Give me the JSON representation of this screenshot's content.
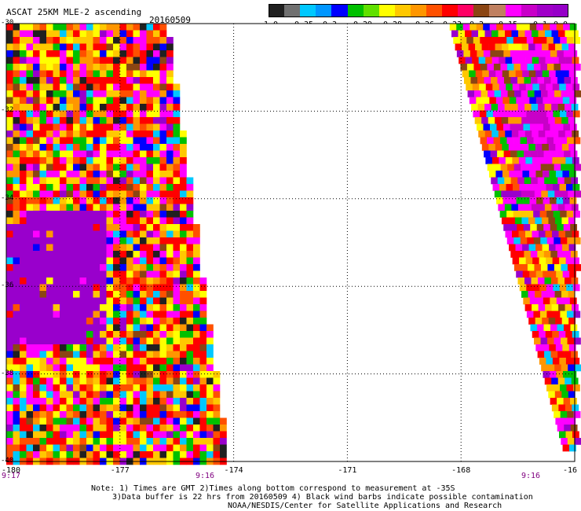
{
  "header": {
    "title": "ASCAT 25KM MLE-2 ascending",
    "date": "20160509"
  },
  "colorbar": {
    "labels": [
      "-1.0",
      "-0.35",
      "-0.3",
      "-0.29",
      "-0.28",
      "-0.26",
      "-0.23",
      "-0.2",
      "-0.15",
      "-0.1",
      "0.0"
    ],
    "colors": [
      "#202020",
      "#707070",
      "#00c8ff",
      "#0096ff",
      "#0000ff",
      "#00c000",
      "#60e000",
      "#ffff00",
      "#ffc800",
      "#ff9600",
      "#ff5000",
      "#ff0000",
      "#ff0064",
      "#8b4513",
      "#c08060",
      "#ff00ff",
      "#c800c8",
      "#a000c8",
      "#9600c8"
    ]
  },
  "map": {
    "lon_labels": [
      "-180",
      "-177",
      "-174",
      "-171",
      "-168",
      "-16"
    ],
    "lat_labels": [
      "-30",
      "-32",
      "-34",
      "-36",
      "-38",
      "-40"
    ],
    "lon_range": [
      -180,
      -165
    ],
    "lat_range": [
      -40,
      -30
    ],
    "grid": true,
    "palette": [
      "#202020",
      "#00c8ff",
      "#0000ff",
      "#00c000",
      "#ffff00",
      "#ffc800",
      "#ff9600",
      "#ff5000",
      "#ff0000",
      "#ff00ff",
      "#9900cc",
      "#8b4513"
    ],
    "swaths": [
      {
        "name": "west",
        "lon_start_top": -180,
        "lon_end_top": -175.8,
        "lon_end_bottom": -174.2
      },
      {
        "name": "east",
        "lon_start_top": -168.3,
        "lon_end_top": -165,
        "lon_start_bottom": -165.2
      }
    ]
  },
  "times": {
    "left": "9:17",
    "middle": "9:16",
    "right": "9:16"
  },
  "notes": {
    "line1": "Note: 1) Times are GMT 2)Times along bottom correspond to measurement at -35S",
    "line2": "3)Data buffer is 22 hrs from 20160509 4) Black wind barbs indicate possible contamination",
    "line3": "NOAA/NESDIS/Center for Satellite Applications and Research"
  }
}
